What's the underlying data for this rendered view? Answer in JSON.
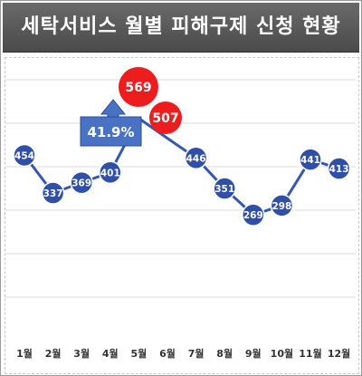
{
  "title": "세탁서비스 월별 피해구제 신청 현황",
  "chart_data": {
    "type": "line",
    "categories": [
      "1월",
      "2월",
      "3월",
      "4월",
      "5월",
      "6월",
      "7월",
      "8월",
      "9월",
      "10월",
      "11월",
      "12월"
    ],
    "values": [
      454,
      337,
      369,
      401,
      569,
      507,
      446,
      351,
      269,
      298,
      441,
      413
    ],
    "highlight": [
      4,
      5
    ],
    "annotation": "41.9%",
    "colors": {
      "line": "#3558b0",
      "marker": "#2f4fa8",
      "highlight": "#ee1c1c",
      "annotation_fill": "#4a72c4"
    },
    "grid": true,
    "xlabel": "",
    "ylabel": ""
  }
}
